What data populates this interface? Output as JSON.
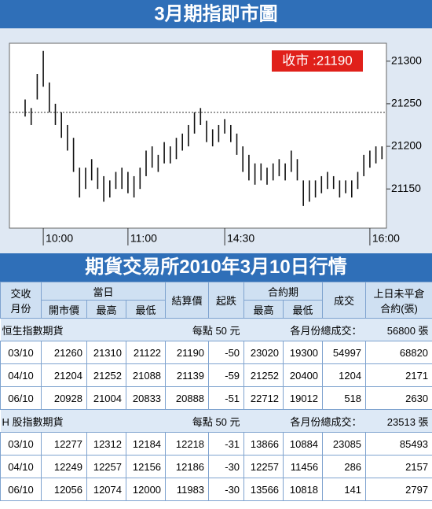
{
  "chart_data": {
    "type": "range-bar",
    "title": "3月期指即市圖",
    "annotation": "收市 :21190",
    "color": "#111111",
    "annotation_color": "#e0201a",
    "high": [
      21255,
      21245,
      21285,
      21312,
      21275,
      21250,
      21240,
      21225,
      21210,
      21175,
      21175,
      21185,
      21175,
      21165,
      21160,
      21170,
      21175,
      21170,
      21165,
      21175,
      21195,
      21200,
      21190,
      21205,
      21200,
      21210,
      21215,
      21225,
      21240,
      21245,
      21230,
      21220,
      21225,
      21232,
      21225,
      21215,
      21200,
      21190,
      21180,
      21180,
      21175,
      21180,
      21185,
      21180,
      21195,
      21185,
      21160,
      21160,
      21160,
      21165,
      21170,
      21165,
      21160,
      21160,
      21160,
      21170,
      21190,
      21195,
      21200,
      21200
    ],
    "low": [
      21235,
      21225,
      21255,
      21270,
      21240,
      21225,
      21210,
      21195,
      21170,
      21140,
      21150,
      21160,
      21150,
      21135,
      21140,
      21150,
      21150,
      21145,
      21140,
      21150,
      21165,
      21175,
      21170,
      21180,
      21180,
      21185,
      21195,
      21200,
      21215,
      21225,
      21205,
      21200,
      21205,
      21215,
      21205,
      21190,
      21170,
      21160,
      21155,
      21160,
      21155,
      21160,
      21165,
      21160,
      21170,
      21160,
      21130,
      21135,
      21140,
      21145,
      21150,
      21150,
      21140,
      21145,
      21140,
      21150,
      21165,
      21175,
      21180,
      21185
    ],
    "reference_line": 21240,
    "ylim": [
      21104,
      21321
    ],
    "yticks": [
      21150,
      21200,
      21250,
      21300
    ],
    "xticks": [
      {
        "value": 3,
        "label": "10:00"
      },
      {
        "value": 17,
        "label": "11:00"
      },
      {
        "value": 33,
        "label": "14:30"
      },
      {
        "value": 57,
        "label": "16:00"
      }
    ]
  },
  "table": {
    "title": "期貨交易所2010年3月10日行情",
    "head": {
      "month": [
        "交收",
        "月份"
      ],
      "day": "當日",
      "day_cols": [
        "開市價",
        "最高",
        "最低"
      ],
      "settle": "結算價",
      "change": "起跌",
      "contract": "合約期",
      "contract_cols": [
        "最高",
        "最低"
      ],
      "volume": "成交",
      "open_interest": [
        "上日未平倉",
        "合約(張)"
      ]
    },
    "sections": [
      {
        "name": "恒生指數期貨",
        "point": "每點 50 元",
        "total_label": "各月份總成交：",
        "total": "56800 張",
        "rows": [
          [
            "03/10",
            21260,
            21310,
            21122,
            21190,
            -50,
            23020,
            19300,
            54997,
            68820
          ],
          [
            "04/10",
            21204,
            21252,
            21088,
            21139,
            -59,
            21252,
            20400,
            1204,
            2171
          ],
          [
            "06/10",
            20928,
            21004,
            20833,
            20888,
            -51,
            22712,
            19012,
            518,
            2630
          ]
        ]
      },
      {
        "name": "H 股指數期貨",
        "point": "每點 50 元",
        "total_label": "各月份總成交：",
        "total": "23513 張",
        "rows": [
          [
            "03/10",
            12277,
            12312,
            12184,
            12218,
            -31,
            13866,
            10884,
            23085,
            85493
          ],
          [
            "04/10",
            12249,
            12257,
            12156,
            12186,
            -30,
            12257,
            11456,
            286,
            2157
          ],
          [
            "06/10",
            12056,
            12074,
            12000,
            11983,
            -30,
            13566,
            10818,
            141,
            2797
          ]
        ]
      }
    ]
  }
}
